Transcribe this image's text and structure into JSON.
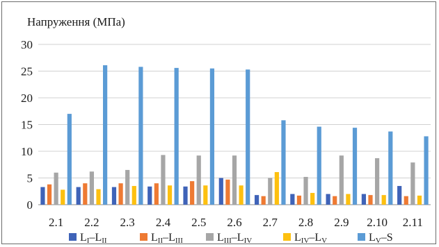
{
  "chart_data": {
    "type": "bar",
    "title": "",
    "ylabel": "Напруження (МПа)",
    "xlabel": "",
    "ylim": [
      0,
      30
    ],
    "yticks": [
      0,
      5,
      10,
      15,
      20,
      25,
      30
    ],
    "grid": "horizontal",
    "legend_position": "bottom",
    "categories": [
      "2.1",
      "2.2",
      "2.3",
      "2.4",
      "2.5",
      "2.6",
      "2.7",
      "2.8",
      "2.9",
      "2.10",
      "2.11"
    ],
    "series": [
      {
        "name": "LI–LII",
        "legend": {
          "base": "L",
          "sub1": "I",
          "dash": "–",
          "base2": "L",
          "sub2": "II"
        },
        "color": "#3f63b8",
        "values": [
          3.3,
          3.3,
          3.3,
          3.4,
          3.4,
          5.0,
          1.8,
          2.0,
          2.0,
          2.0,
          3.5
        ]
      },
      {
        "name": "LII–LIII",
        "legend": {
          "base": "L",
          "sub1": "II",
          "dash": "–",
          "base2": "L",
          "sub2": "III"
        },
        "color": "#ee7a33",
        "values": [
          3.8,
          4.0,
          4.0,
          4.0,
          4.4,
          4.7,
          1.6,
          1.7,
          1.6,
          1.8,
          1.6
        ]
      },
      {
        "name": "LIII–LIV",
        "legend": {
          "base": "L",
          "sub1": "III",
          "dash": "–",
          "base2": "L",
          "sub2": "IV"
        },
        "color": "#a6a6a6",
        "values": [
          6.0,
          6.2,
          6.5,
          9.3,
          9.2,
          9.2,
          5.0,
          5.2,
          9.2,
          8.7,
          7.9
        ]
      },
      {
        "name": "LIV–LV",
        "legend": {
          "base": "L",
          "sub1": "IV",
          "dash": "–",
          "base2": "L",
          "sub2": "V"
        },
        "color": "#fdc010",
        "values": [
          2.8,
          2.9,
          3.5,
          3.6,
          3.6,
          3.6,
          6.1,
          2.2,
          2.0,
          1.8,
          1.7
        ]
      },
      {
        "name": "LV–S",
        "legend": {
          "base": "L",
          "sub1": "V",
          "dash": "–",
          "base2": "S",
          "sub2": ""
        },
        "color": "#5b9bd5",
        "values": [
          17.0,
          26.1,
          25.8,
          25.6,
          25.5,
          25.3,
          15.8,
          14.6,
          14.4,
          13.7,
          12.8
        ]
      }
    ]
  }
}
